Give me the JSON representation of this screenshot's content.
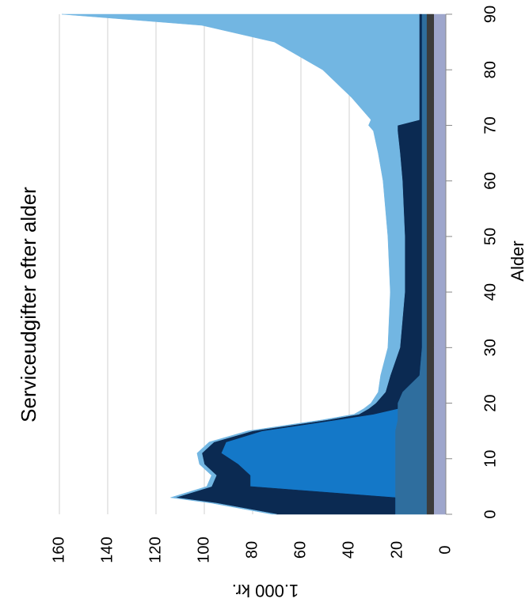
{
  "chart_data": {
    "type": "stacked_area",
    "title": "Serviceudgifter efter alder",
    "x_label": "Alder",
    "y_label": "1.000 kr.",
    "x": [
      0,
      2,
      3,
      5,
      7,
      9,
      11,
      13,
      15,
      17,
      18,
      19,
      20,
      22,
      25,
      30,
      40,
      50,
      60,
      65,
      69,
      70,
      71,
      75,
      80,
      85,
      88,
      90
    ],
    "series": [
      {
        "color": "#9ea6cc",
        "values": [
          5,
          5,
          5,
          5,
          5,
          5,
          5,
          5,
          5,
          5,
          5,
          5,
          5,
          5,
          5,
          5,
          5,
          5,
          5,
          5,
          5,
          5,
          5,
          5,
          5,
          5,
          5,
          5
        ]
      },
      {
        "color": "#3c3c3c",
        "values": [
          3,
          3,
          3,
          3,
          3,
          3,
          3,
          3,
          3,
          3,
          3,
          3,
          3,
          3,
          3,
          3,
          3,
          3,
          3,
          3,
          3,
          3,
          3,
          3,
          3,
          3,
          3,
          3
        ]
      },
      {
        "color": "#2f6e9e",
        "values": [
          13,
          13,
          13,
          13,
          13,
          13,
          13,
          13,
          13,
          12,
          12,
          12,
          12,
          10,
          3,
          2,
          2,
          2,
          2,
          2,
          2,
          2,
          2,
          2,
          2,
          2,
          2,
          2
        ]
      },
      {
        "color": "#1478c8",
        "values": [
          0,
          0,
          0,
          60,
          60,
          65,
          72,
          70,
          55,
          25,
          10,
          0,
          0,
          0,
          0,
          0,
          0,
          0,
          0,
          0,
          0,
          0,
          0,
          0,
          0,
          0,
          0,
          0
        ]
      },
      {
        "color": "#0b2a52",
        "values": [
          49,
          74,
          91,
          16,
          14,
          14,
          8,
          5,
          4,
          4,
          6,
          12,
          9,
          7,
          12,
          9,
          7,
          7,
          8,
          9,
          10,
          10,
          1,
          1,
          1,
          1,
          1,
          1
        ]
      },
      {
        "color": "#72b6e2",
        "values": [
          2,
          2,
          2,
          2,
          2,
          2,
          2,
          2,
          2,
          2,
          2,
          2,
          2,
          3,
          4,
          5,
          6,
          7,
          8,
          9,
          10,
          12,
          20,
          28,
          40,
          60,
          90,
          148
        ]
      }
    ],
    "xlim": [
      0,
      90
    ],
    "xticks": [
      0,
      10,
      20,
      30,
      40,
      50,
      60,
      70,
      80,
      90
    ],
    "ylim": [
      0,
      160
    ],
    "yticks": [
      0,
      20,
      40,
      60,
      80,
      100,
      120,
      140,
      160
    ],
    "grid": true
  }
}
